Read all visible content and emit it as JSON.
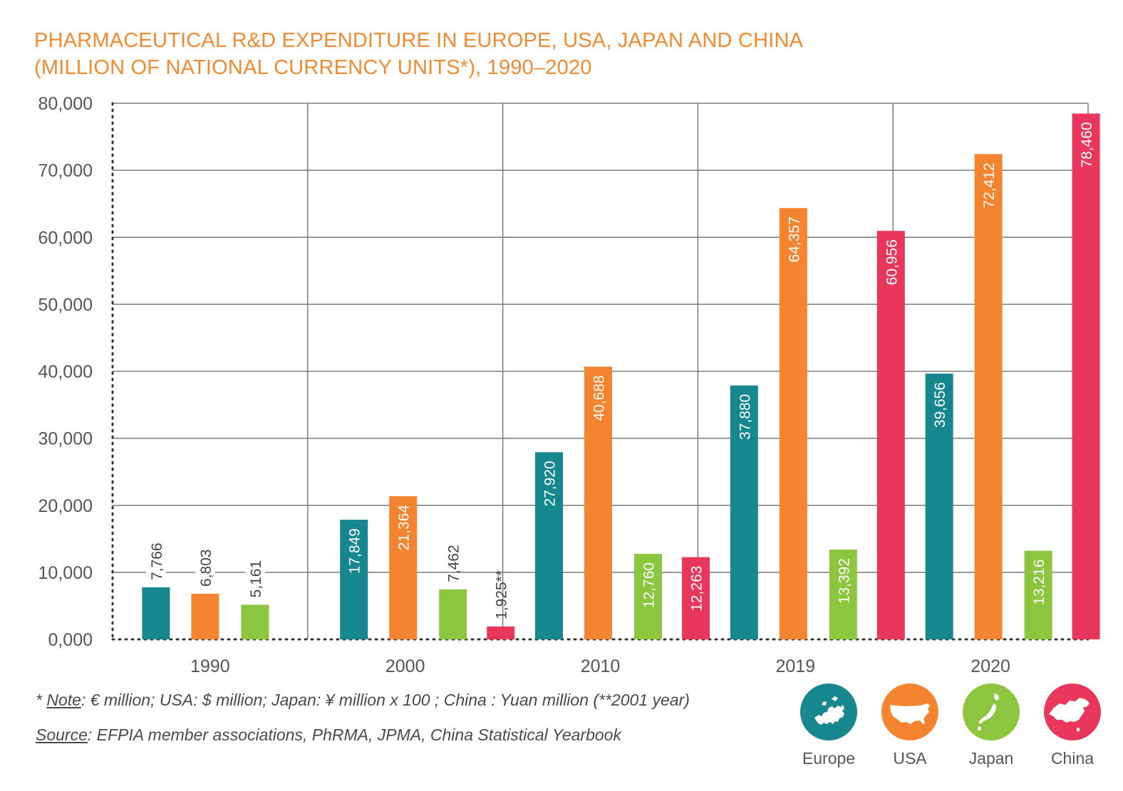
{
  "title": {
    "line1": "PHARMACEUTICAL R&D EXPENDITURE IN EUROPE, USA, JAPAN AND CHINA",
    "line2": "(MILLION OF NATIONAL CURRENCY UNITS*), 1990–2020"
  },
  "chart_data": {
    "type": "bar",
    "title": "PHARMACEUTICAL R&D EXPENDITURE IN EUROPE, USA, JAPAN AND CHINA (MILLION OF NATIONAL CURRENCY UNITS*), 1990–2020",
    "categories": [
      "1990",
      "2000",
      "2010",
      "2019",
      "2020"
    ],
    "ylim": [
      0,
      80000
    ],
    "yticks": [
      0,
      10000,
      20000,
      30000,
      40000,
      50000,
      60000,
      70000,
      80000
    ],
    "ytick_labels": [
      "0,000",
      "10,000",
      "20,000",
      "30,000",
      "40,000",
      "50,000",
      "60,000",
      "70,000",
      "80,000"
    ],
    "grid": true,
    "legend": "bottom-right",
    "series": [
      {
        "name": "Europe",
        "color": "#16868f",
        "values": [
          7766,
          17849,
          27920,
          37880,
          39656
        ],
        "labels": [
          "7,766",
          "17,849",
          "27,920",
          "37,880",
          "39,656"
        ]
      },
      {
        "name": "USA",
        "color": "#f4842f",
        "values": [
          6803,
          21364,
          40688,
          64357,
          72412
        ],
        "labels": [
          "6,803",
          "21,364",
          "40,688",
          "64,357",
          "72,412"
        ]
      },
      {
        "name": "Japan",
        "color": "#8cc63f",
        "values": [
          5161,
          7462,
          12760,
          13392,
          13216
        ],
        "labels": [
          "5,161",
          "7,462",
          "12,760",
          "13,392",
          "13,216"
        ]
      },
      {
        "name": "China",
        "color": "#e8365d",
        "values": [
          null,
          1925,
          12263,
          60956,
          78460
        ],
        "labels": [
          null,
          "1,925**",
          "12,263",
          "60,956",
          "78,460"
        ]
      }
    ]
  },
  "footnote": {
    "prefix": "* ",
    "note_label": "Note",
    "note_text": ": € million; USA: $ million; Japan: ¥ million x 100 ; China : Yuan million (**2001 year)",
    "source_label": "Source",
    "source_text": ": EFPIA member associations, PhRMA, JPMA, China Statistical Yearbook"
  },
  "legend": {
    "items": [
      {
        "label": "Europe",
        "color": "#16868f",
        "icon": "europe-map-icon"
      },
      {
        "label": "USA",
        "color": "#f4842f",
        "icon": "usa-map-icon"
      },
      {
        "label": "Japan",
        "color": "#8cc63f",
        "icon": "japan-map-icon"
      },
      {
        "label": "China",
        "color": "#e8365d",
        "icon": "china-map-icon"
      }
    ]
  }
}
